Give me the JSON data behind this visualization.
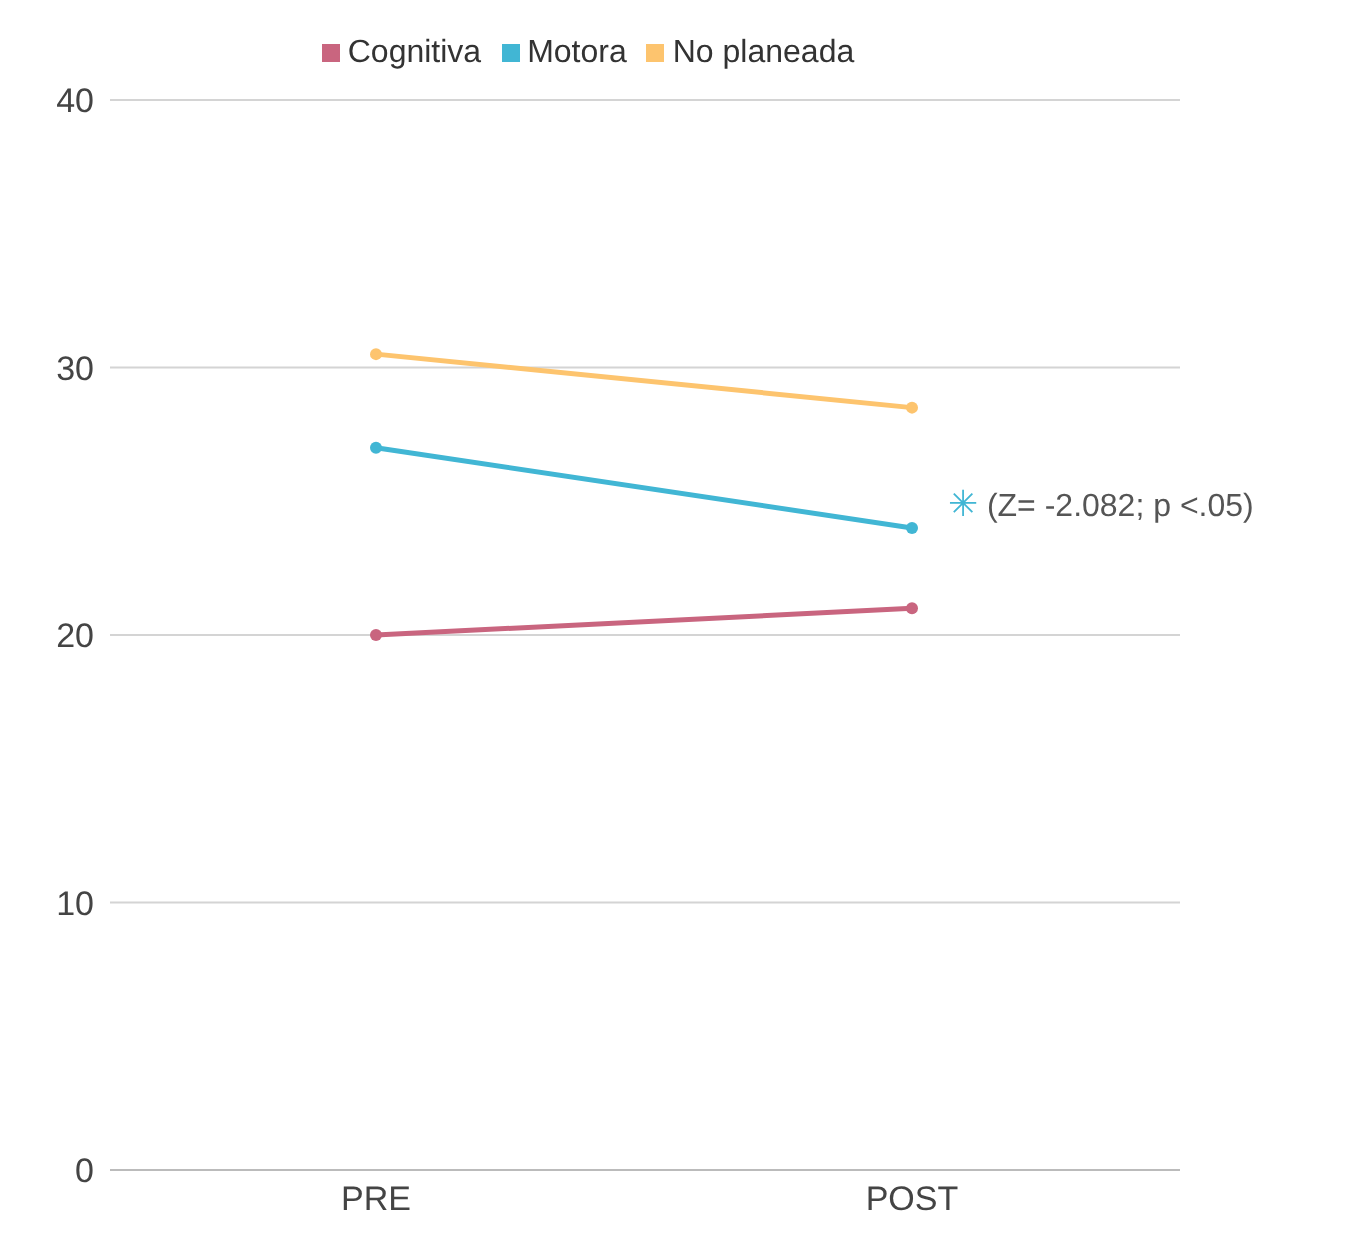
{
  "chart_data": {
    "type": "line",
    "categories": [
      "PRE",
      "POST"
    ],
    "series": [
      {
        "name": "Cognitiva",
        "color": "#c9657f",
        "values": [
          20,
          21
        ]
      },
      {
        "name": "Motora",
        "color": "#41b6d4",
        "values": [
          27,
          24
        ]
      },
      {
        "name": "No planeada",
        "color": "#fdc46e",
        "values": [
          30.5,
          28.5
        ]
      }
    ],
    "ylim": [
      0,
      40
    ],
    "yticks": [
      0,
      10,
      20,
      30,
      40
    ],
    "grid": "y",
    "legend": "top",
    "marker": "circle",
    "line_style": "solid",
    "annotations": [
      "✳ (Z= -2.082; p <.05)"
    ]
  }
}
